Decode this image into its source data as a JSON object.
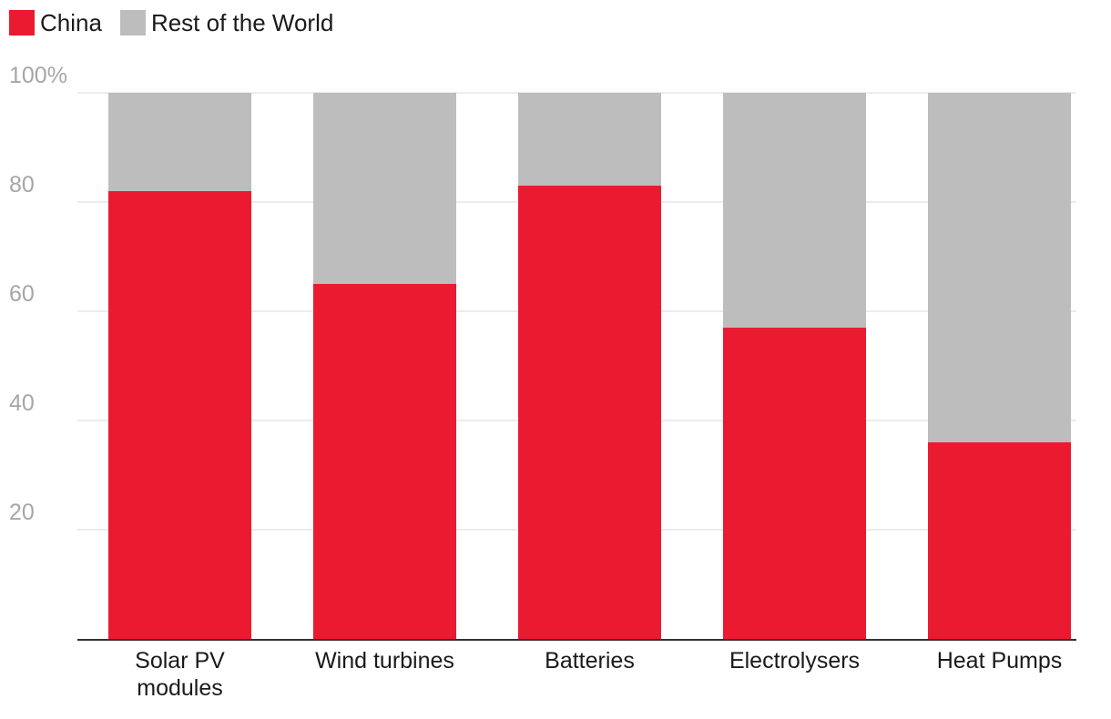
{
  "legend": {
    "china_label": "China",
    "row_label": "Rest of the World"
  },
  "colors": {
    "china": "#ea1b30",
    "rest_of_world": "#bdbdbd",
    "grid": "#e5e5e5",
    "axis": "#333333"
  },
  "chart_data": {
    "type": "bar",
    "stacked": true,
    "categories": [
      [
        "Solar PV",
        "modules"
      ],
      [
        "Wind turbines"
      ],
      [
        "Batteries"
      ],
      [
        "Electrolysers"
      ],
      [
        "Heat Pumps"
      ]
    ],
    "series": [
      {
        "name": "China",
        "values": [
          82,
          65,
          83,
          57,
          36
        ]
      },
      {
        "name": "Rest of the World",
        "values": [
          18,
          35,
          17,
          43,
          64
        ]
      }
    ],
    "ylim": [
      0,
      100
    ],
    "yticks": [
      20,
      40,
      60,
      80,
      100
    ],
    "ytick_labels": [
      "20",
      "40",
      "60",
      "80",
      "100%"
    ],
    "title": "",
    "xlabel": "",
    "ylabel": "",
    "legend_position": "top-left",
    "grid": true
  }
}
